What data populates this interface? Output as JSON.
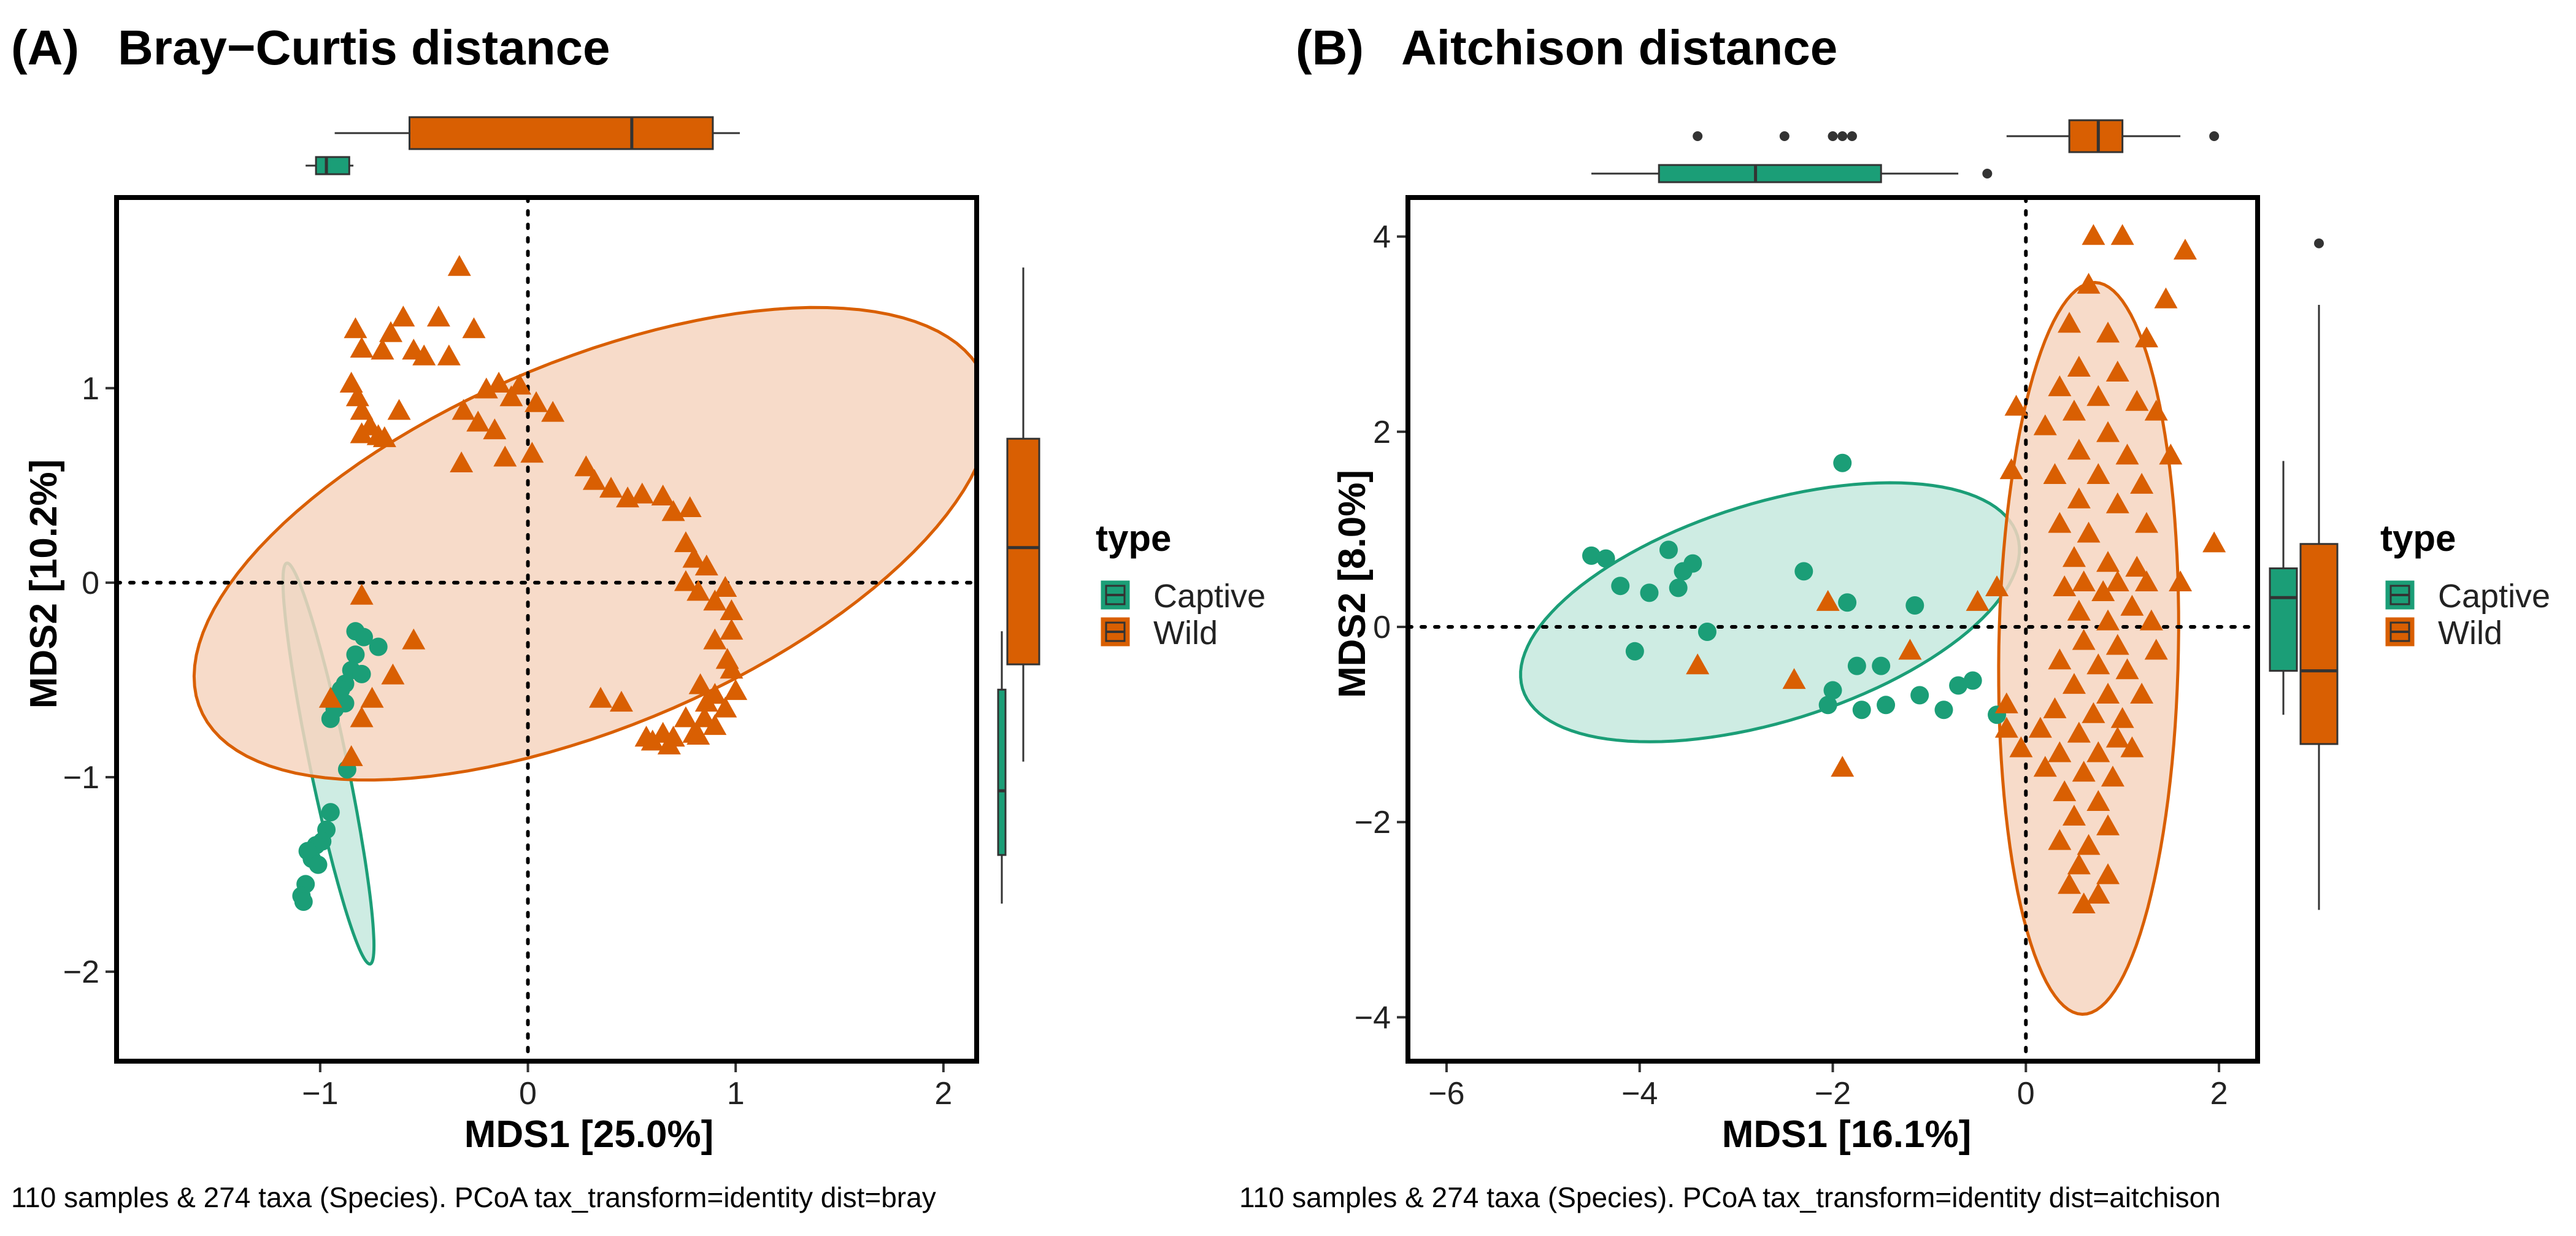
{
  "colors": {
    "captive": "#1b9e77",
    "wild": "#d95f02",
    "captive_fill": "#c6e9de",
    "wild_fill": "#f6d5bf"
  },
  "panels": [
    {
      "label": "(A)",
      "title": "Bray−Curtis distance",
      "xlabel": "MDS1 [25.0%]",
      "ylabel": "MDS2 [10.2%]",
      "caption": "110 samples & 274 taxa (Species). PCoA tax_transform=identity dist=bray",
      "legend_title": "type",
      "legend_items": [
        "Captive",
        "Wild"
      ]
    },
    {
      "label": "(B)",
      "title": "Aitchison distance",
      "xlabel": "MDS1 [16.1%]",
      "ylabel": "MDS2 [8.0%]",
      "caption": "110 samples & 274 taxa (Species). PCoA tax_transform=identity dist=aitchison",
      "legend_title": "type",
      "legend_items": [
        "Captive",
        "Wild"
      ]
    }
  ],
  "chart_data": [
    {
      "type": "scatter",
      "title": "Bray−Curtis distance",
      "xlabel": "MDS1 [25.0%]",
      "ylabel": "MDS2 [10.2%]",
      "xlim": [
        -1.98,
        2.16
      ],
      "ylim": [
        -2.46,
        1.98
      ],
      "xticks": [
        -1,
        0,
        1,
        2
      ],
      "xtick_labels": [
        "−1",
        "0",
        "1",
        "2"
      ],
      "yticks": [
        -2,
        -1,
        0,
        1
      ],
      "ytick_labels": [
        "−2",
        "−1",
        "0",
        "1"
      ],
      "ellipses": [
        {
          "group": "Captive",
          "cx": -0.96,
          "cy": -0.93,
          "rx": 1.05,
          "ry": 0.09,
          "angle_deg": -79
        },
        {
          "group": "Wild",
          "cx": 0.31,
          "cy": 0.2,
          "rx": 2.07,
          "ry": 0.93,
          "angle_deg": 25
        }
      ],
      "series": [
        {
          "name": "Captive",
          "shape": "circle",
          "points": [
            [
              -0.83,
              -0.25
            ],
            [
              -0.79,
              -0.28
            ],
            [
              -0.72,
              -0.33
            ],
            [
              -0.83,
              -0.37
            ],
            [
              -0.85,
              -0.45
            ],
            [
              -0.8,
              -0.47
            ],
            [
              -0.88,
              -0.52
            ],
            [
              -0.9,
              -0.55
            ],
            [
              -0.92,
              -0.58
            ],
            [
              -0.88,
              -0.62
            ],
            [
              -0.93,
              -0.65
            ],
            [
              -0.95,
              -0.7
            ],
            [
              -0.87,
              -0.96
            ],
            [
              -0.95,
              -1.18
            ],
            [
              -0.97,
              -1.27
            ],
            [
              -0.99,
              -1.33
            ],
            [
              -1.02,
              -1.35
            ],
            [
              -1.04,
              -1.42
            ],
            [
              -1.06,
              -1.38
            ],
            [
              -1.01,
              -1.45
            ],
            [
              -1.07,
              -1.55
            ],
            [
              -1.09,
              -1.61
            ],
            [
              -1.08,
              -1.64
            ]
          ]
        },
        {
          "name": "Wild",
          "shape": "triangle",
          "points": [
            [
              -0.33,
              1.62
            ],
            [
              -0.6,
              1.36
            ],
            [
              -0.43,
              1.36
            ],
            [
              -0.83,
              1.3
            ],
            [
              -0.66,
              1.28
            ],
            [
              -0.8,
              1.2
            ],
            [
              -0.7,
              1.19
            ],
            [
              -0.55,
              1.19
            ],
            [
              -0.5,
              1.16
            ],
            [
              -0.38,
              1.16
            ],
            [
              -0.26,
              1.3
            ],
            [
              -0.85,
              1.02
            ],
            [
              -0.82,
              0.95
            ],
            [
              -0.8,
              0.88
            ],
            [
              -0.76,
              0.8
            ],
            [
              -0.72,
              0.75
            ],
            [
              -0.62,
              0.88
            ],
            [
              -0.8,
              0.76
            ],
            [
              -0.69,
              0.74
            ],
            [
              -0.2,
              0.99
            ],
            [
              -0.14,
              1.02
            ],
            [
              -0.04,
              1.01
            ],
            [
              0.04,
              0.92
            ],
            [
              -0.08,
              0.95
            ],
            [
              0.12,
              0.87
            ],
            [
              -0.24,
              0.82
            ],
            [
              -0.16,
              0.78
            ],
            [
              -0.31,
              0.88
            ],
            [
              -0.32,
              0.61
            ],
            [
              -0.11,
              0.64
            ],
            [
              0.02,
              0.66
            ],
            [
              0.28,
              0.59
            ],
            [
              0.32,
              0.52
            ],
            [
              0.4,
              0.48
            ],
            [
              0.48,
              0.43
            ],
            [
              0.55,
              0.45
            ],
            [
              0.65,
              0.44
            ],
            [
              0.78,
              0.38
            ],
            [
              0.7,
              0.36
            ],
            [
              0.76,
              0.2
            ],
            [
              0.8,
              0.12
            ],
            [
              0.86,
              0.08
            ],
            [
              0.76,
              0.0
            ],
            [
              0.82,
              -0.05
            ],
            [
              0.95,
              -0.03
            ],
            [
              0.9,
              -0.1
            ],
            [
              0.98,
              -0.15
            ],
            [
              0.98,
              -0.25
            ],
            [
              0.9,
              -0.3
            ],
            [
              0.96,
              -0.4
            ],
            [
              0.98,
              -0.45
            ],
            [
              0.83,
              -0.53
            ],
            [
              0.9,
              -0.58
            ],
            [
              1.0,
              -0.56
            ],
            [
              0.86,
              -0.62
            ],
            [
              0.95,
              -0.65
            ],
            [
              0.76,
              -0.7
            ],
            [
              0.85,
              -0.7
            ],
            [
              0.9,
              -0.74
            ],
            [
              0.8,
              -0.78
            ],
            [
              0.7,
              -0.8
            ],
            [
              0.82,
              -0.79
            ],
            [
              0.65,
              -0.78
            ],
            [
              0.68,
              -0.84
            ],
            [
              0.6,
              -0.82
            ],
            [
              0.57,
              -0.8
            ],
            [
              0.45,
              -0.62
            ],
            [
              0.35,
              -0.6
            ],
            [
              -0.75,
              -0.6
            ],
            [
              -0.95,
              -0.6
            ],
            [
              -0.8,
              -0.7
            ],
            [
              -0.8,
              -0.07
            ],
            [
              -0.55,
              -0.3
            ],
            [
              -0.65,
              -0.48
            ],
            [
              -0.85,
              -0.9
            ]
          ]
        }
      ],
      "boxplot_top": [
        {
          "group": "Captive",
          "whisker_min": -1.07,
          "q1": -1.02,
          "median": -0.97,
          "q3": -0.86,
          "whisker_max": -0.84
        },
        {
          "group": "Wild",
          "whisker_min": -0.93,
          "q1": -0.57,
          "median": 0.5,
          "q3": 0.89,
          "whisker_max": 1.02
        }
      ],
      "boxplot_right": [
        {
          "group": "Captive",
          "whisker_min": -1.65,
          "q1": -1.4,
          "median": -1.07,
          "q3": -0.55,
          "whisker_max": -0.25
        },
        {
          "group": "Wild",
          "whisker_min": -0.92,
          "q1": -0.42,
          "median": 0.18,
          "q3": 0.74,
          "whisker_max": 1.62
        }
      ]
    },
    {
      "type": "scatter",
      "title": "Aitchison distance",
      "xlabel": "MDS1 [16.1%]",
      "ylabel": "MDS2 [8.0%]",
      "xlim": [
        -6.4,
        2.4
      ],
      "ylim": [
        -4.45,
        4.4
      ],
      "xticks": [
        -6,
        -4,
        -2,
        0,
        2
      ],
      "xtick_labels": [
        "−6",
        "−4",
        "−2",
        "0",
        "2"
      ],
      "yticks": [
        -4,
        -2,
        0,
        2,
        4
      ],
      "ytick_labels": [
        "−4",
        "−2",
        "0",
        "2",
        "4"
      ],
      "ellipses": [
        {
          "group": "Captive",
          "cx": -2.65,
          "cy": 0.15,
          "rx": 2.68,
          "ry": 1.12,
          "angle_deg": 17
        },
        {
          "group": "Wild",
          "cx": 0.65,
          "cy": -0.22,
          "rx": 3.75,
          "ry": 0.93,
          "angle_deg": 89
        }
      ],
      "series": [
        {
          "name": "Captive",
          "shape": "circle",
          "points": [
            [
              -4.5,
              0.73
            ],
            [
              -4.35,
              0.7
            ],
            [
              -4.2,
              0.42
            ],
            [
              -3.9,
              0.35
            ],
            [
              -3.7,
              0.79
            ],
            [
              -3.55,
              0.57
            ],
            [
              -3.45,
              0.65
            ],
            [
              -3.6,
              0.4
            ],
            [
              -3.3,
              -0.05
            ],
            [
              -4.05,
              -0.25
            ],
            [
              -2.3,
              0.57
            ],
            [
              -1.9,
              1.68
            ],
            [
              -1.85,
              0.25
            ],
            [
              -1.75,
              -0.4
            ],
            [
              -1.7,
              -0.85
            ],
            [
              -1.45,
              -0.8
            ],
            [
              -1.15,
              0.22
            ],
            [
              -1.1,
              -0.7
            ],
            [
              -0.85,
              -0.85
            ],
            [
              -0.7,
              -0.6
            ],
            [
              -0.55,
              -0.55
            ],
            [
              -2.05,
              -0.8
            ],
            [
              -1.5,
              -0.4
            ],
            [
              -2.0,
              -0.65
            ],
            [
              -0.3,
              -0.9
            ]
          ]
        },
        {
          "name": "Wild",
          "shape": "triangle",
          "points": [
            [
              0.7,
              4.0
            ],
            [
              1.0,
              4.0
            ],
            [
              1.65,
              3.85
            ],
            [
              0.65,
              3.5
            ],
            [
              1.45,
              3.35
            ],
            [
              0.45,
              3.1
            ],
            [
              0.85,
              3.0
            ],
            [
              1.25,
              2.95
            ],
            [
              0.55,
              2.65
            ],
            [
              0.95,
              2.6
            ],
            [
              0.35,
              2.45
            ],
            [
              0.75,
              2.35
            ],
            [
              1.15,
              2.3
            ],
            [
              -0.1,
              2.25
            ],
            [
              0.5,
              2.2
            ],
            [
              1.35,
              2.2
            ],
            [
              0.2,
              2.05
            ],
            [
              0.85,
              1.98
            ],
            [
              0.55,
              1.8
            ],
            [
              1.05,
              1.75
            ],
            [
              1.5,
              1.75
            ],
            [
              -0.15,
              1.6
            ],
            [
              0.3,
              1.55
            ],
            [
              0.75,
              1.55
            ],
            [
              1.2,
              1.45
            ],
            [
              0.55,
              1.3
            ],
            [
              0.95,
              1.25
            ],
            [
              1.25,
              1.05
            ],
            [
              0.35,
              1.05
            ],
            [
              0.65,
              0.95
            ],
            [
              1.95,
              0.85
            ],
            [
              0.5,
              0.7
            ],
            [
              0.85,
              0.65
            ],
            [
              1.15,
              0.6
            ],
            [
              0.6,
              0.45
            ],
            [
              0.95,
              0.45
            ],
            [
              1.25,
              0.45
            ],
            [
              1.6,
              0.45
            ],
            [
              -0.3,
              0.4
            ],
            [
              0.4,
              0.4
            ],
            [
              0.8,
              0.35
            ],
            [
              1.1,
              0.2
            ],
            [
              0.55,
              0.15
            ],
            [
              0.85,
              0.05
            ],
            [
              1.3,
              0.05
            ],
            [
              0.6,
              -0.15
            ],
            [
              0.95,
              -0.2
            ],
            [
              1.35,
              -0.25
            ],
            [
              0.35,
              -0.35
            ],
            [
              0.75,
              -0.4
            ],
            [
              1.05,
              -0.45
            ],
            [
              0.5,
              -0.6
            ],
            [
              0.85,
              -0.7
            ],
            [
              1.2,
              -0.7
            ],
            [
              0.3,
              -0.85
            ],
            [
              0.7,
              -0.9
            ],
            [
              1.0,
              -0.95
            ],
            [
              0.15,
              -1.05
            ],
            [
              0.55,
              -1.1
            ],
            [
              0.95,
              -1.15
            ],
            [
              0.35,
              -1.3
            ],
            [
              0.75,
              -1.3
            ],
            [
              1.1,
              -1.25
            ],
            [
              0.2,
              -1.45
            ],
            [
              0.6,
              -1.5
            ],
            [
              0.9,
              -1.55
            ],
            [
              0.4,
              -1.7
            ],
            [
              0.75,
              -1.8
            ],
            [
              0.5,
              -1.95
            ],
            [
              0.85,
              -2.05
            ],
            [
              0.35,
              -2.2
            ],
            [
              0.65,
              -2.25
            ],
            [
              0.55,
              -2.45
            ],
            [
              0.85,
              -2.55
            ],
            [
              0.45,
              -2.65
            ],
            [
              0.75,
              -2.75
            ],
            [
              0.6,
              -2.85
            ],
            [
              -0.2,
              -1.05
            ],
            [
              -0.05,
              -1.25
            ],
            [
              -0.5,
              0.25
            ],
            [
              -1.2,
              -0.25
            ],
            [
              -1.9,
              -1.45
            ],
            [
              -2.05,
              0.25
            ],
            [
              -2.4,
              -0.55
            ],
            [
              -3.4,
              -0.4
            ],
            [
              -0.2,
              -0.8
            ]
          ]
        }
      ],
      "boxplot_top": [
        {
          "group": "Captive",
          "whisker_min": -4.5,
          "q1": -3.8,
          "median": -2.8,
          "q3": -1.5,
          "whisker_max": -0.7,
          "outliers": [
            -0.4
          ]
        },
        {
          "group": "Wild",
          "whisker_min": -0.2,
          "q1": 0.45,
          "median": 0.75,
          "q3": 1.0,
          "whisker_max": 1.6,
          "outliers": [
            -3.4,
            -2.5,
            -2.0,
            -1.9,
            -1.8,
            1.95
          ]
        }
      ],
      "boxplot_right": [
        {
          "group": "Captive",
          "whisker_min": -0.9,
          "q1": -0.45,
          "median": 0.3,
          "q3": 0.6,
          "whisker_max": 1.7
        },
        {
          "group": "Wild",
          "whisker_min": -2.9,
          "q1": -1.2,
          "median": -0.45,
          "q3": 0.85,
          "whisker_max": 3.3,
          "outliers": [
            3.93
          ]
        }
      ]
    }
  ]
}
